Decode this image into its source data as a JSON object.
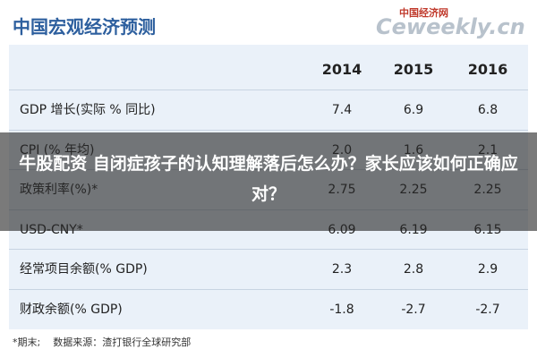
{
  "header": {
    "title": "中国宏观经济预测",
    "logo_cn": "中国经济网",
    "logo_en": "Ceweekly.cn"
  },
  "table": {
    "columns": [
      "2014",
      "2015",
      "2016"
    ],
    "rows": [
      [
        "GDP 增长(实际 % 同比)",
        "7.4",
        "6.9",
        "6.8"
      ],
      [
        "CPI (% 年均)",
        "2.0",
        "1.6",
        "2.1"
      ],
      [
        "政策利率(%)*",
        "2.75",
        "2.25",
        "2.25"
      ],
      [
        "USD-CNY*",
        "6.09",
        "6.19",
        "6.15"
      ],
      [
        "经常项目余额(% GDP)",
        "2.3",
        "2.8",
        "2.9"
      ],
      [
        "财政余额(% GDP)",
        "-1.8",
        "-2.7",
        "-2.7"
      ]
    ]
  },
  "footnote": "*期末;    数据来源：渣打银行全球研究部",
  "overlay": "牛股配资 自闭症孩子的认知理解落后怎么办？家长应该如何正确应对？"
}
